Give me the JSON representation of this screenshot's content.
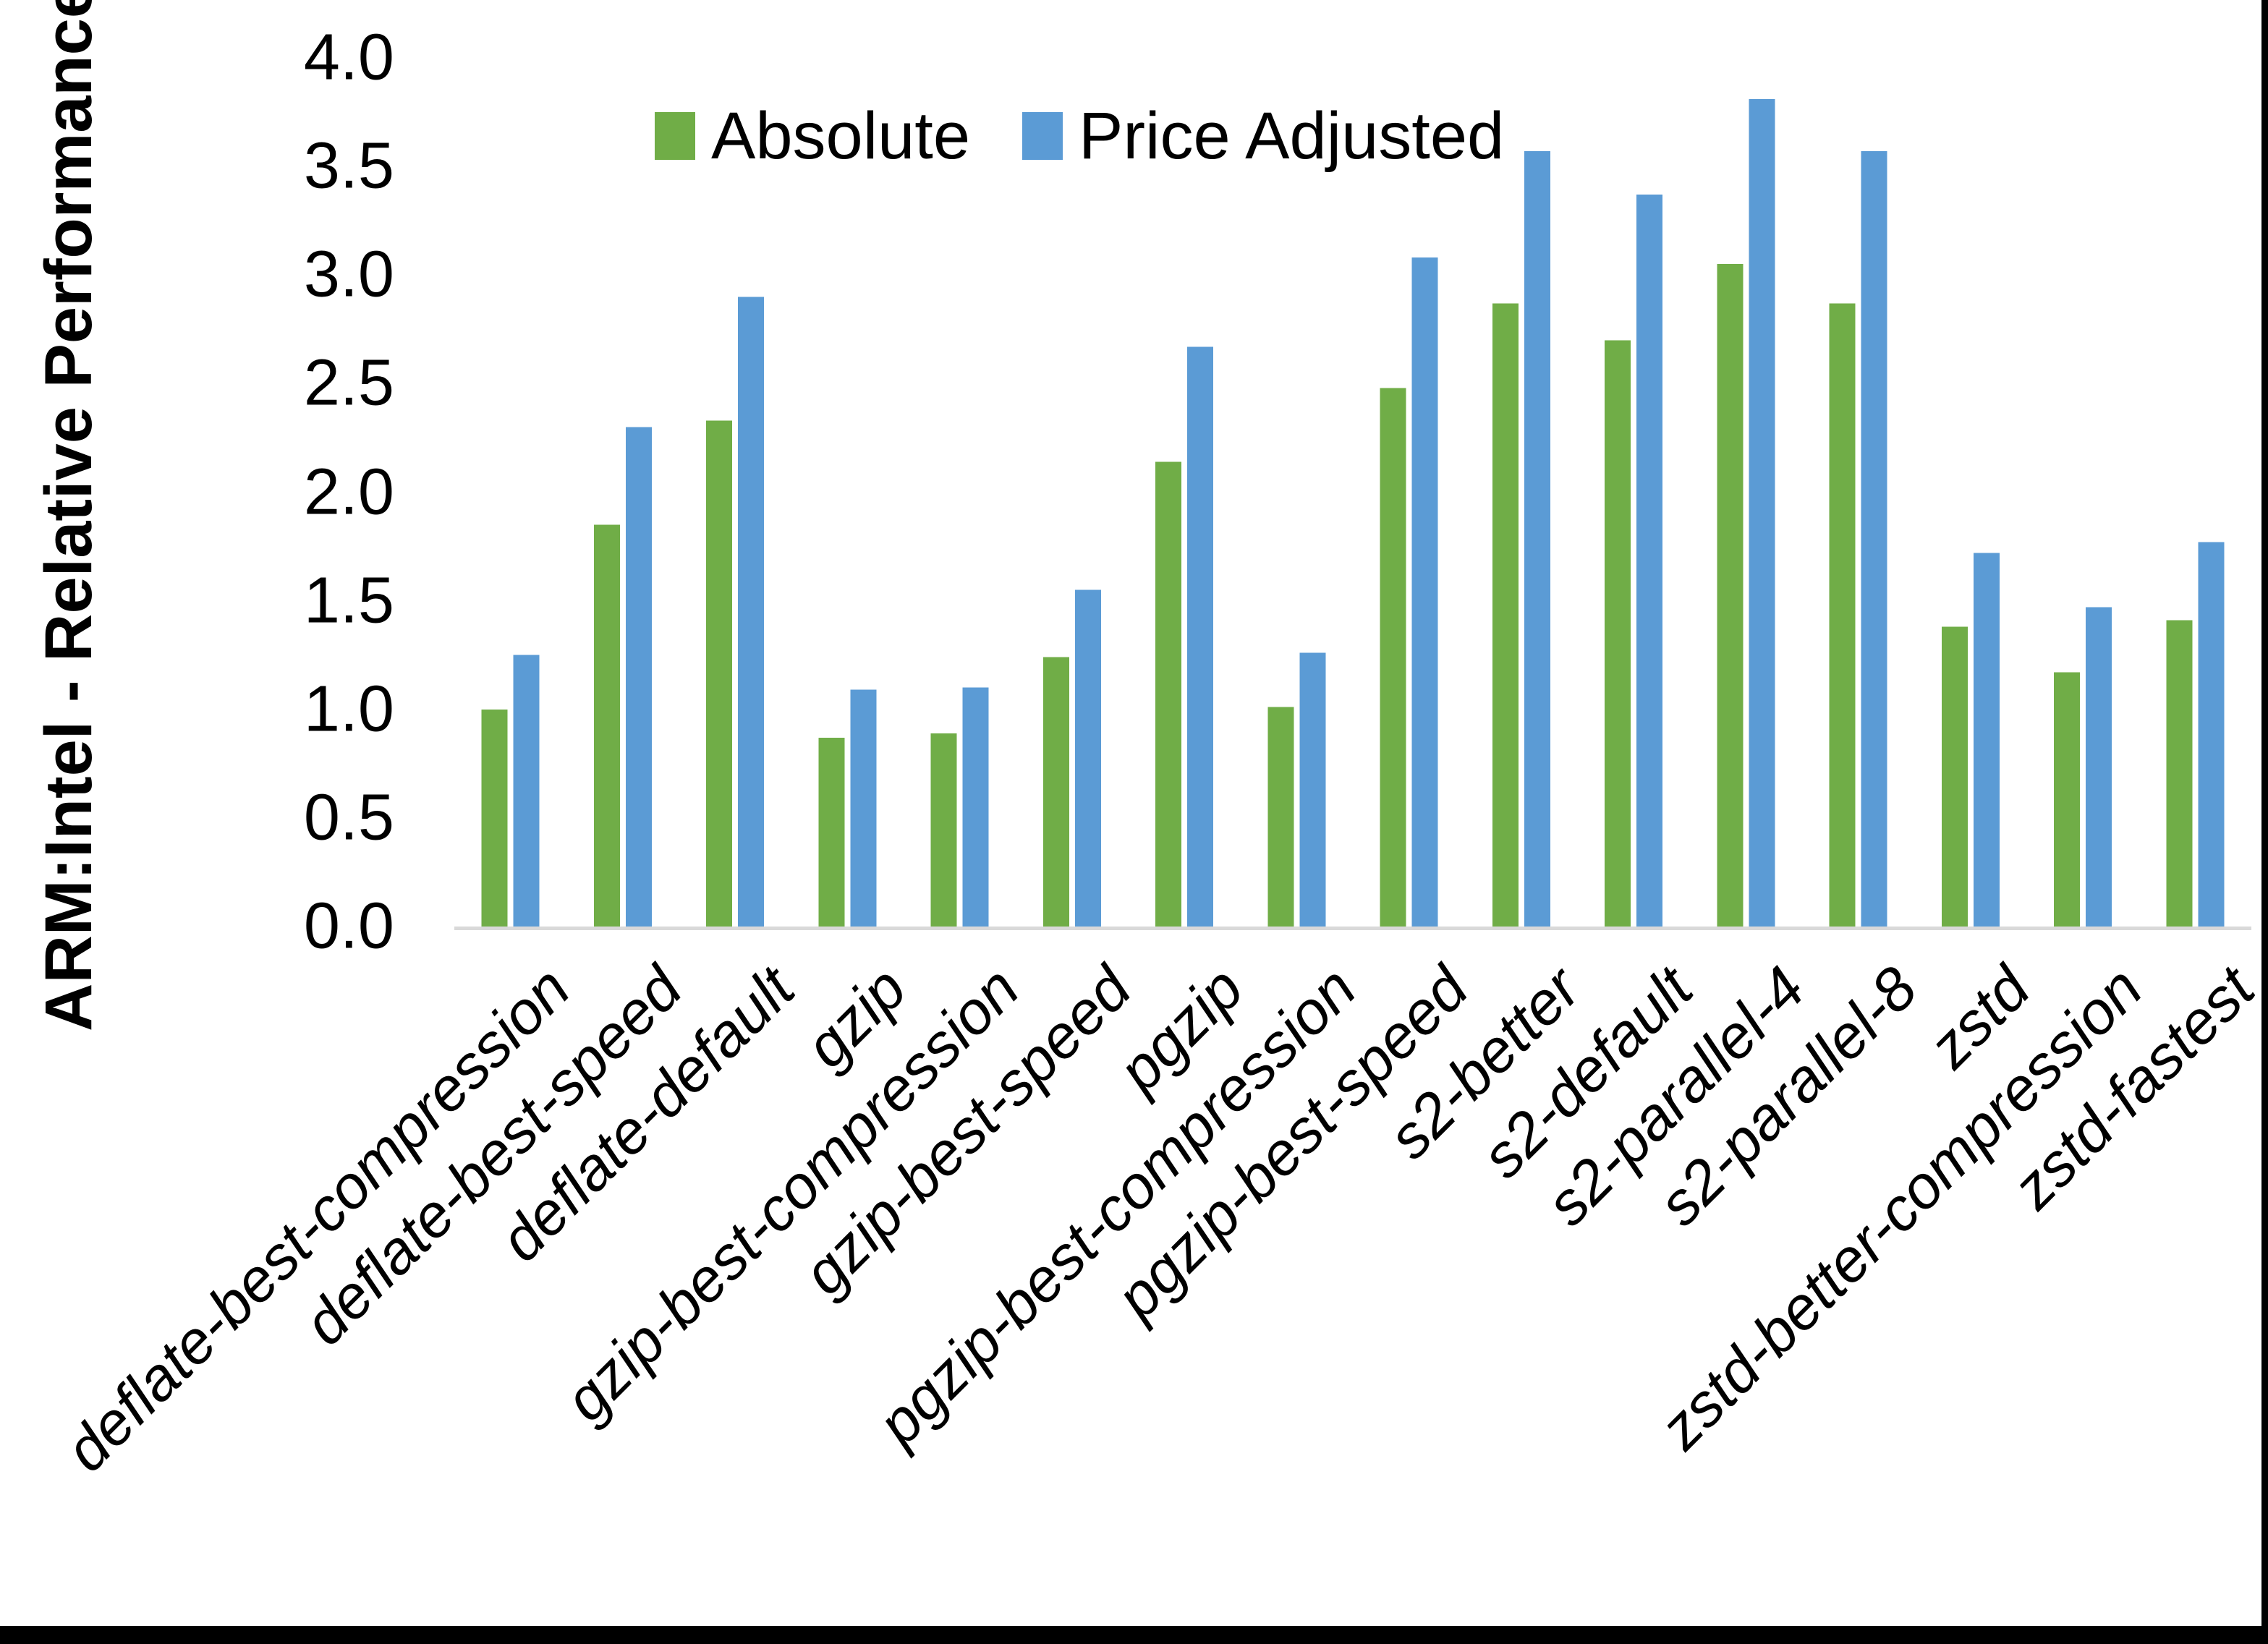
{
  "chart_data": {
    "type": "bar",
    "title": "",
    "xlabel": "",
    "ylabel": "ARM:Intel - Relative Performance",
    "ylim": [
      0.0,
      4.0
    ],
    "ytick_step": 0.5,
    "ytick_decimals": 1,
    "grid": false,
    "legend_position": "top-center",
    "background_color": "#FFFFFF",
    "axis_line_color": "#D9D9D9",
    "text_color": "#000000",
    "categories": [
      "deflate-best-compression",
      "deflate-best-speed",
      "deflate-default",
      "gzip",
      "gzip-best-compression",
      "gzip-best-speed",
      "pgzip",
      "pgzip-best-compression",
      "pgzip-best-speed",
      "s2-better",
      "s2-default",
      "s2-parallel-4",
      "s2-parallel-8",
      "zstd",
      "zstd-better-compression",
      "zstd-fastest"
    ],
    "series": [
      {
        "name": "Absolute",
        "color": "#70AD47",
        "values": [
          1.0,
          1.85,
          2.33,
          0.87,
          0.89,
          1.24,
          2.14,
          1.01,
          2.48,
          2.87,
          2.7,
          3.05,
          2.87,
          1.38,
          1.17,
          1.41
        ]
      },
      {
        "name": "Price Adjusted",
        "color": "#5B9BD5",
        "values": [
          1.25,
          2.3,
          2.9,
          1.09,
          1.1,
          1.55,
          2.67,
          1.26,
          3.08,
          3.57,
          3.37,
          3.81,
          3.57,
          1.72,
          1.47,
          1.77
        ]
      }
    ]
  }
}
